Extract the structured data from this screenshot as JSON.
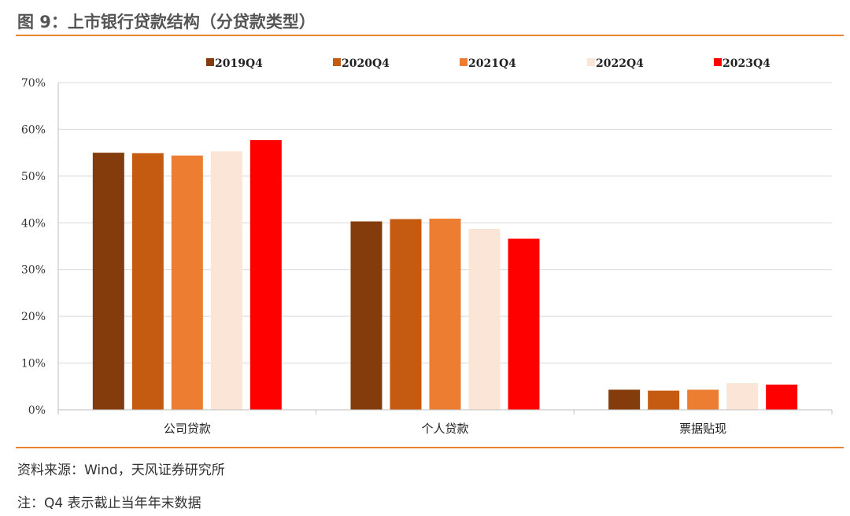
{
  "header": {
    "title": "图 9：上市银行贷款结构（分贷款类型）"
  },
  "footer": {
    "source": "资料来源：Wind，天风证券研究所",
    "note": "注：Q4 表示截止当年年末数据"
  },
  "chart_data": {
    "type": "bar",
    "categories": [
      "公司贷款",
      "个人贷款",
      "票据贴现"
    ],
    "series": [
      {
        "name": "2019Q4",
        "color": "#843c0c",
        "values": [
          55.0,
          40.3,
          4.3
        ]
      },
      {
        "name": "2020Q4",
        "color": "#c55a11",
        "values": [
          54.9,
          40.8,
          4.1
        ]
      },
      {
        "name": "2021Q4",
        "color": "#ed7d31",
        "values": [
          54.4,
          40.9,
          4.3
        ]
      },
      {
        "name": "2022Q4",
        "color": "#fbe5d6",
        "values": [
          55.3,
          38.7,
          5.7
        ]
      },
      {
        "name": "2023Q4",
        "color": "#ff0000",
        "values": [
          57.7,
          36.6,
          5.4
        ]
      }
    ],
    "yticks": [
      "0%",
      "10%",
      "20%",
      "30%",
      "40%",
      "50%",
      "60%",
      "70%"
    ],
    "ylim": [
      0,
      70
    ],
    "legend_position": "top",
    "grid": true
  }
}
